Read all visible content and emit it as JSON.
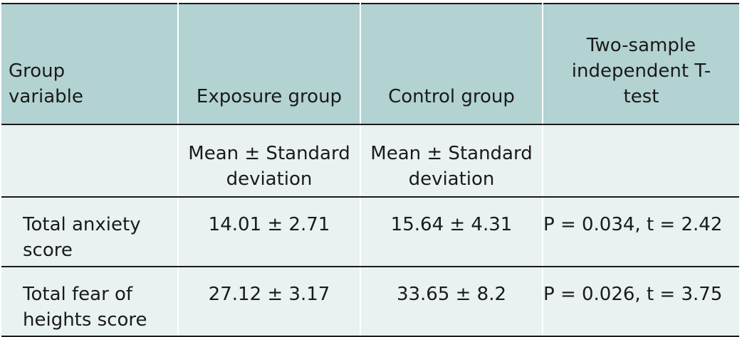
{
  "table": {
    "headers": {
      "group_variable": "Group variable",
      "exposure_group": "Exposure group",
      "control_group": "Control group",
      "ttest": "Two-sample independent T-test"
    },
    "subheaders": {
      "group_variable": "",
      "exposure_group": "Mean ± Standard deviation",
      "control_group": "Mean ± Standard deviation",
      "ttest": ""
    },
    "rows": [
      {
        "label": "Total anxiety score",
        "exposure": "14.01 ± 2.71",
        "control": "15.64 ± 4.31",
        "ttest": "P = 0.034, t = 2.42"
      },
      {
        "label": "Total fear of heights score",
        "exposure": "27.12 ± 3.17",
        "control": "33.65 ± 8.2",
        "ttest": "P = 0.026, t = 3.75"
      }
    ],
    "colors": {
      "header_bg": "#b3d2d2",
      "body_bg": "#e9f1f1",
      "rule": "#1a1a1a"
    }
  }
}
